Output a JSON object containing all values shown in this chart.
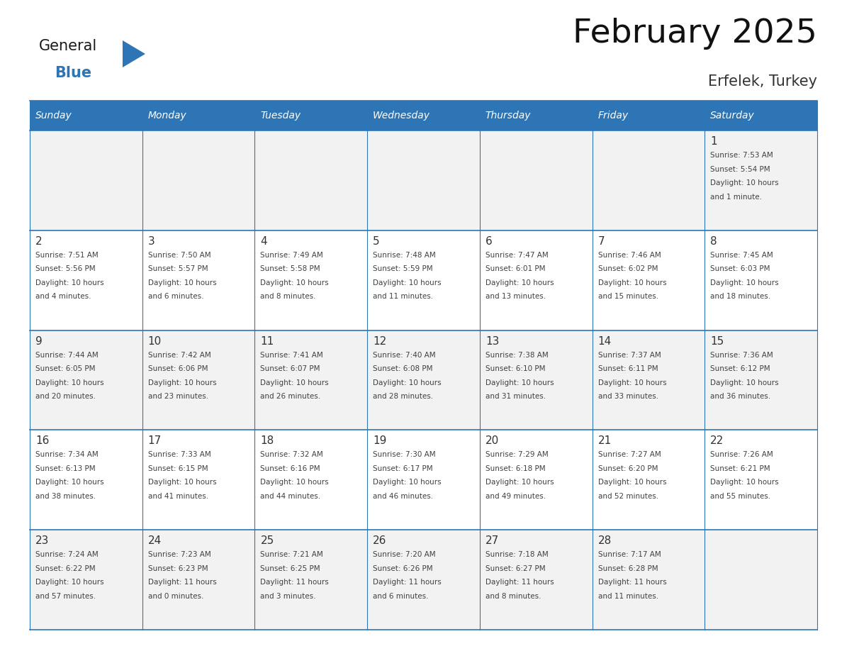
{
  "title": "February 2025",
  "subtitle": "Erfelek, Turkey",
  "header_bg": "#2E75B6",
  "header_text_color": "#FFFFFF",
  "cell_bg_light": "#F2F2F2",
  "cell_bg_white": "#FFFFFF",
  "border_color": "#2E75B6",
  "text_color": "#404040",
  "day_number_color": "#333333",
  "days_of_week": [
    "Sunday",
    "Monday",
    "Tuesday",
    "Wednesday",
    "Thursday",
    "Friday",
    "Saturday"
  ],
  "logo_general_color": "#1a1a1a",
  "logo_blue_color": "#2E75B6",
  "calendar_data": [
    [
      {
        "day": null,
        "info": ""
      },
      {
        "day": null,
        "info": ""
      },
      {
        "day": null,
        "info": ""
      },
      {
        "day": null,
        "info": ""
      },
      {
        "day": null,
        "info": ""
      },
      {
        "day": null,
        "info": ""
      },
      {
        "day": 1,
        "info": "Sunrise: 7:53 AM\nSunset: 5:54 PM\nDaylight: 10 hours\nand 1 minute."
      }
    ],
    [
      {
        "day": 2,
        "info": "Sunrise: 7:51 AM\nSunset: 5:56 PM\nDaylight: 10 hours\nand 4 minutes."
      },
      {
        "day": 3,
        "info": "Sunrise: 7:50 AM\nSunset: 5:57 PM\nDaylight: 10 hours\nand 6 minutes."
      },
      {
        "day": 4,
        "info": "Sunrise: 7:49 AM\nSunset: 5:58 PM\nDaylight: 10 hours\nand 8 minutes."
      },
      {
        "day": 5,
        "info": "Sunrise: 7:48 AM\nSunset: 5:59 PM\nDaylight: 10 hours\nand 11 minutes."
      },
      {
        "day": 6,
        "info": "Sunrise: 7:47 AM\nSunset: 6:01 PM\nDaylight: 10 hours\nand 13 minutes."
      },
      {
        "day": 7,
        "info": "Sunrise: 7:46 AM\nSunset: 6:02 PM\nDaylight: 10 hours\nand 15 minutes."
      },
      {
        "day": 8,
        "info": "Sunrise: 7:45 AM\nSunset: 6:03 PM\nDaylight: 10 hours\nand 18 minutes."
      }
    ],
    [
      {
        "day": 9,
        "info": "Sunrise: 7:44 AM\nSunset: 6:05 PM\nDaylight: 10 hours\nand 20 minutes."
      },
      {
        "day": 10,
        "info": "Sunrise: 7:42 AM\nSunset: 6:06 PM\nDaylight: 10 hours\nand 23 minutes."
      },
      {
        "day": 11,
        "info": "Sunrise: 7:41 AM\nSunset: 6:07 PM\nDaylight: 10 hours\nand 26 minutes."
      },
      {
        "day": 12,
        "info": "Sunrise: 7:40 AM\nSunset: 6:08 PM\nDaylight: 10 hours\nand 28 minutes."
      },
      {
        "day": 13,
        "info": "Sunrise: 7:38 AM\nSunset: 6:10 PM\nDaylight: 10 hours\nand 31 minutes."
      },
      {
        "day": 14,
        "info": "Sunrise: 7:37 AM\nSunset: 6:11 PM\nDaylight: 10 hours\nand 33 minutes."
      },
      {
        "day": 15,
        "info": "Sunrise: 7:36 AM\nSunset: 6:12 PM\nDaylight: 10 hours\nand 36 minutes."
      }
    ],
    [
      {
        "day": 16,
        "info": "Sunrise: 7:34 AM\nSunset: 6:13 PM\nDaylight: 10 hours\nand 38 minutes."
      },
      {
        "day": 17,
        "info": "Sunrise: 7:33 AM\nSunset: 6:15 PM\nDaylight: 10 hours\nand 41 minutes."
      },
      {
        "day": 18,
        "info": "Sunrise: 7:32 AM\nSunset: 6:16 PM\nDaylight: 10 hours\nand 44 minutes."
      },
      {
        "day": 19,
        "info": "Sunrise: 7:30 AM\nSunset: 6:17 PM\nDaylight: 10 hours\nand 46 minutes."
      },
      {
        "day": 20,
        "info": "Sunrise: 7:29 AM\nSunset: 6:18 PM\nDaylight: 10 hours\nand 49 minutes."
      },
      {
        "day": 21,
        "info": "Sunrise: 7:27 AM\nSunset: 6:20 PM\nDaylight: 10 hours\nand 52 minutes."
      },
      {
        "day": 22,
        "info": "Sunrise: 7:26 AM\nSunset: 6:21 PM\nDaylight: 10 hours\nand 55 minutes."
      }
    ],
    [
      {
        "day": 23,
        "info": "Sunrise: 7:24 AM\nSunset: 6:22 PM\nDaylight: 10 hours\nand 57 minutes."
      },
      {
        "day": 24,
        "info": "Sunrise: 7:23 AM\nSunset: 6:23 PM\nDaylight: 11 hours\nand 0 minutes."
      },
      {
        "day": 25,
        "info": "Sunrise: 7:21 AM\nSunset: 6:25 PM\nDaylight: 11 hours\nand 3 minutes."
      },
      {
        "day": 26,
        "info": "Sunrise: 7:20 AM\nSunset: 6:26 PM\nDaylight: 11 hours\nand 6 minutes."
      },
      {
        "day": 27,
        "info": "Sunrise: 7:18 AM\nSunset: 6:27 PM\nDaylight: 11 hours\nand 8 minutes."
      },
      {
        "day": 28,
        "info": "Sunrise: 7:17 AM\nSunset: 6:28 PM\nDaylight: 11 hours\nand 11 minutes."
      },
      {
        "day": null,
        "info": ""
      }
    ]
  ],
  "figsize": [
    11.88,
    9.18
  ],
  "dpi": 100
}
